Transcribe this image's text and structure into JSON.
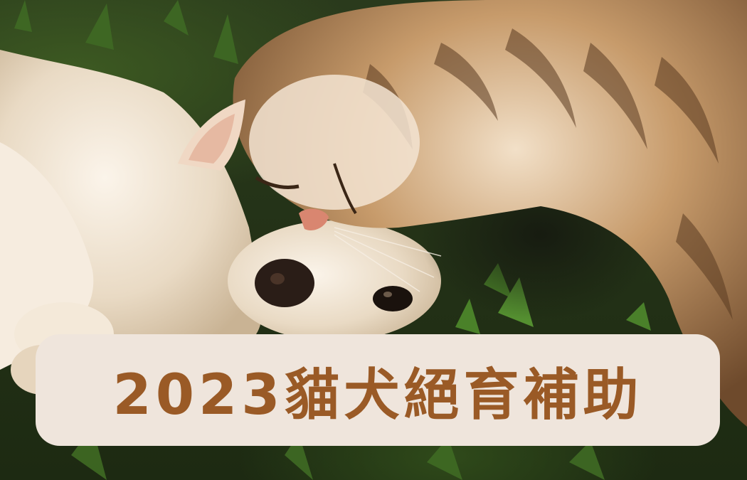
{
  "banner": {
    "title": "2023貓犬絕育補助"
  },
  "photo": {
    "subject": "tabby-cat-cuddling-golden-puppy-on-grass"
  },
  "colors": {
    "banner_background": "#efe5dc",
    "title_text": "#9a5a26",
    "grass": "#2f4a1a",
    "cat_fur": "#b08458",
    "dog_fur": "#e8d9c2"
  }
}
